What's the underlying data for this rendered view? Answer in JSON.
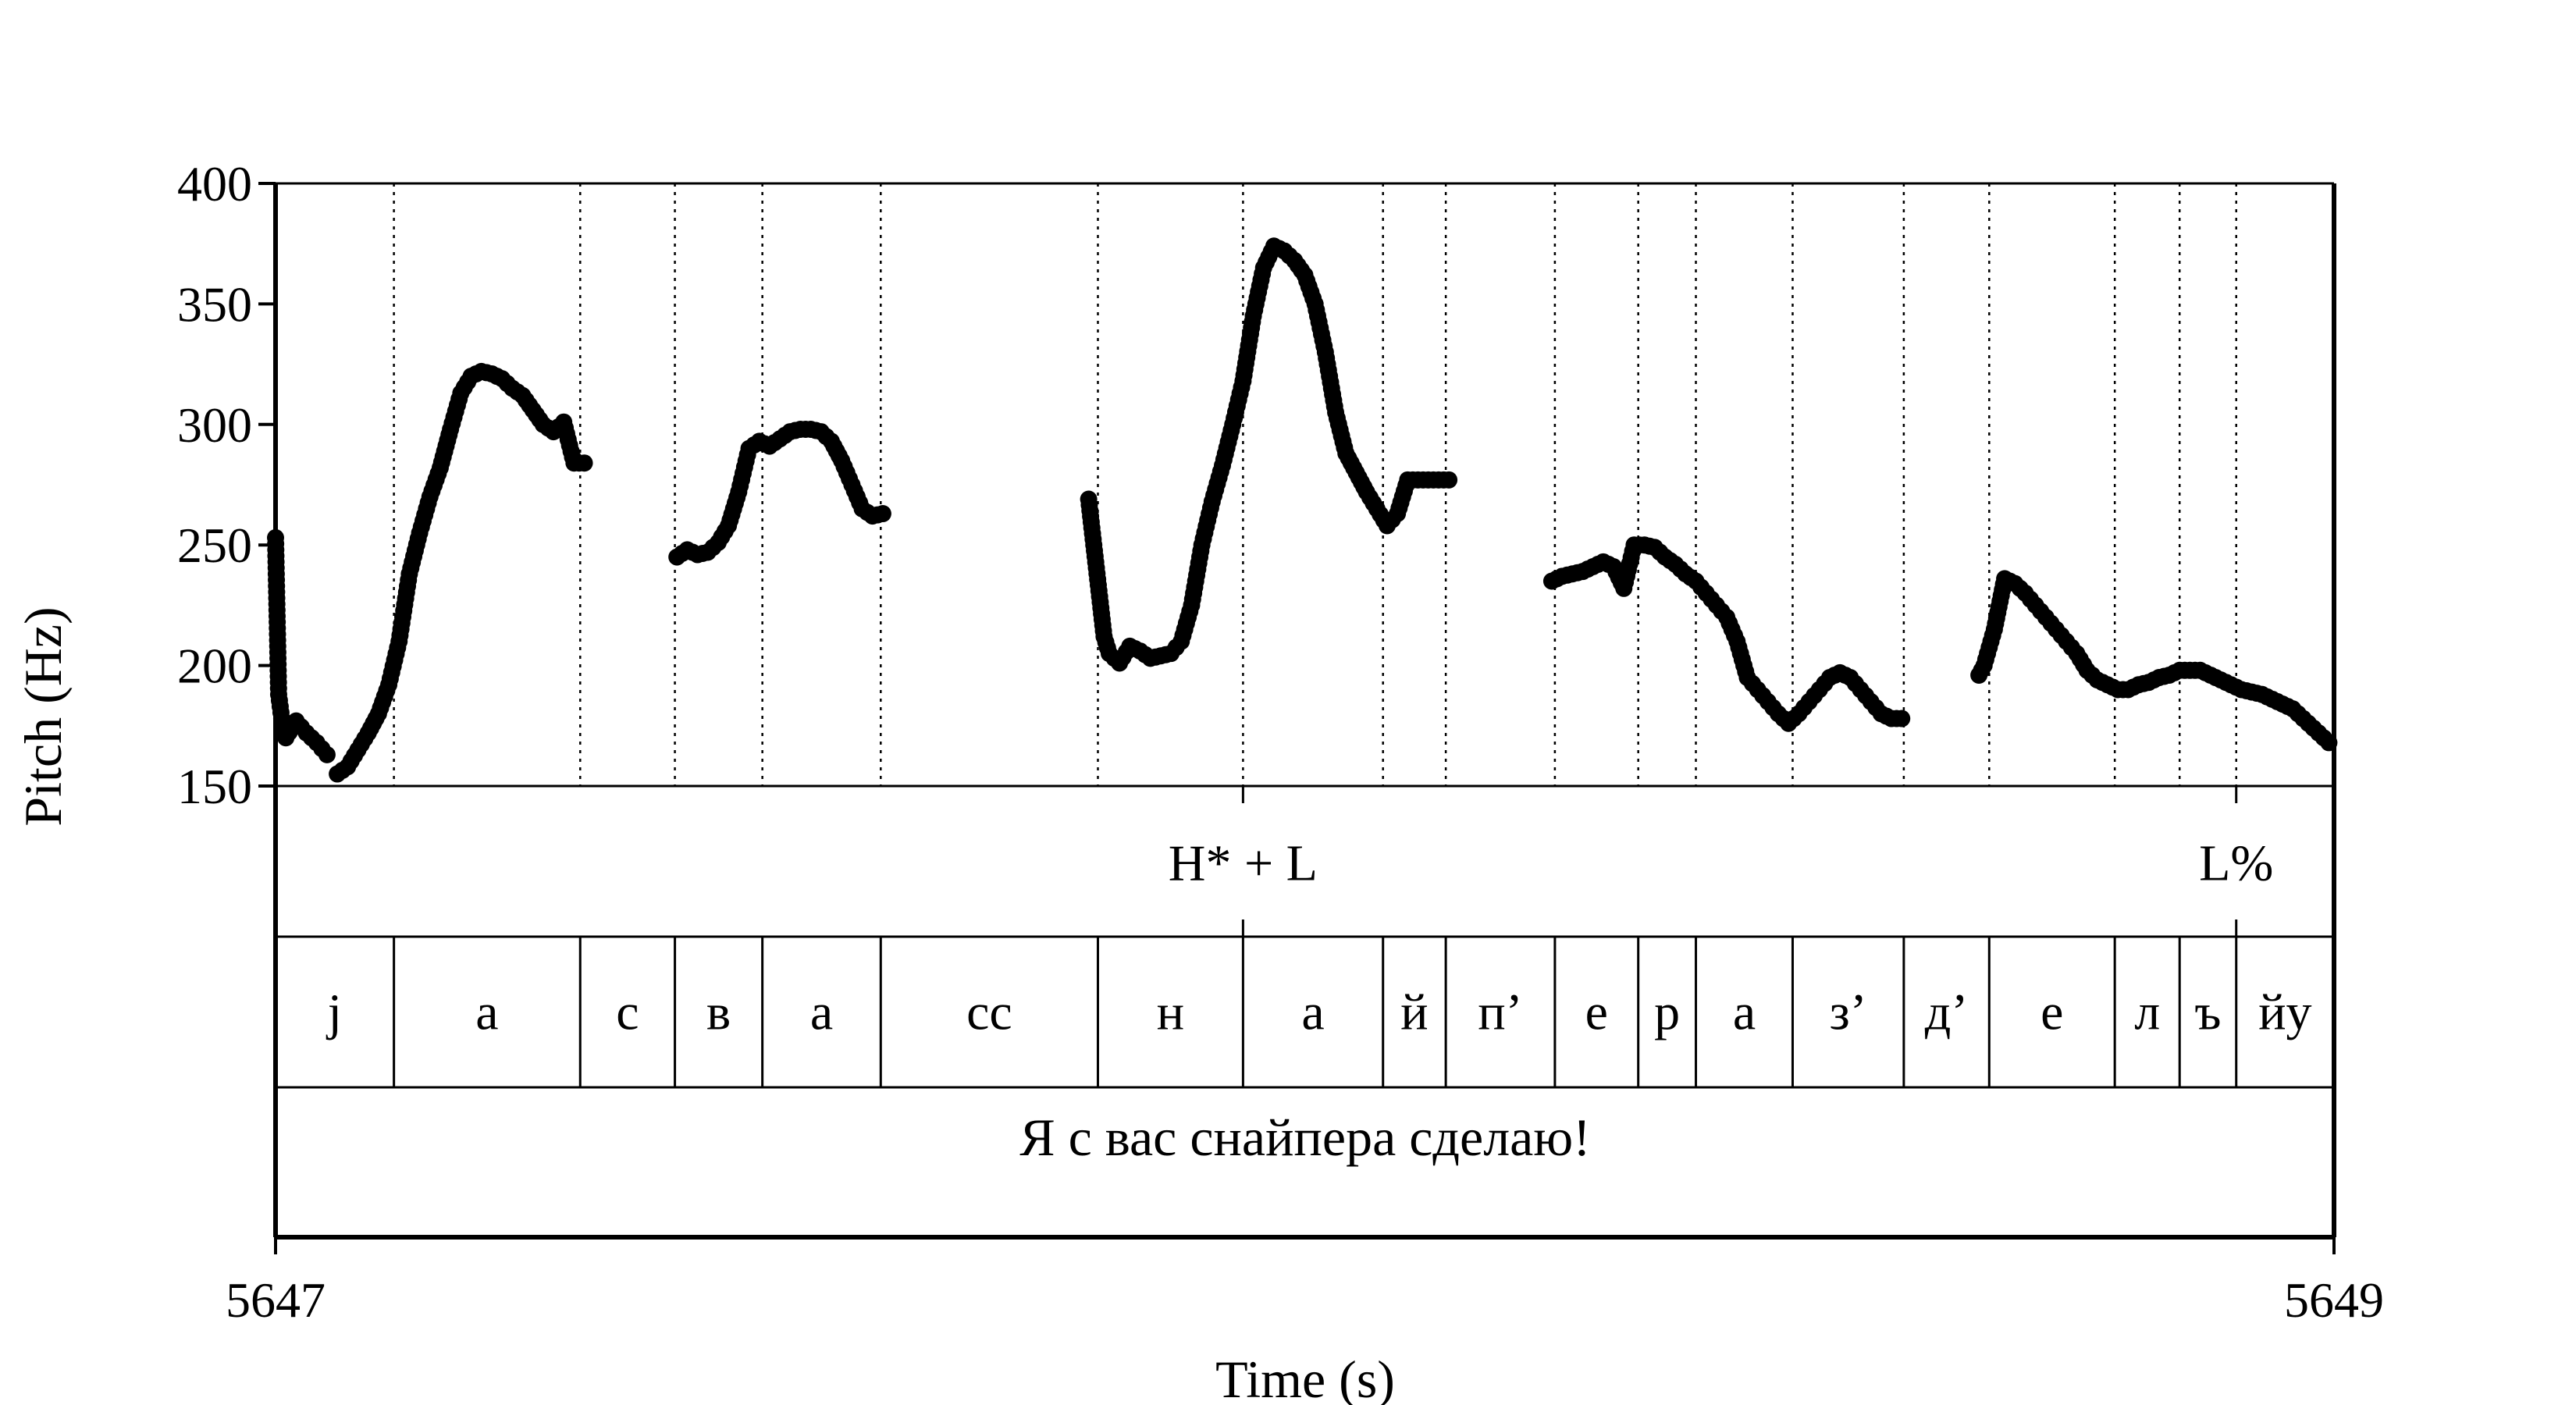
{
  "chart_data": {
    "type": "scatter",
    "xlabel": "Time (s)",
    "ylabel": "Pitch (Hz)",
    "xlim": [
      5647,
      5649
    ],
    "ylim": [
      150,
      400
    ],
    "x_tick_labels": [
      "5647",
      "5649"
    ],
    "y_ticks": [
      150,
      200,
      250,
      300,
      350,
      400
    ],
    "y_tick_labels": [
      "150",
      "200",
      "250",
      "300",
      "350",
      "400"
    ],
    "grid": false,
    "tones": [
      {
        "label": "H* + L",
        "t": 5647.94
      },
      {
        "label": "L%",
        "t": 5648.905
      }
    ],
    "segments": [
      {
        "label": "j",
        "start": 5647.0,
        "end": 5647.115
      },
      {
        "label": "а",
        "start": 5647.115,
        "end": 5647.296
      },
      {
        "label": "с",
        "start": 5647.296,
        "end": 5647.388
      },
      {
        "label": "в",
        "start": 5647.388,
        "end": 5647.473
      },
      {
        "label": "а",
        "start": 5647.473,
        "end": 5647.588
      },
      {
        "label": "сс",
        "start": 5647.588,
        "end": 5647.799
      },
      {
        "label": "н",
        "start": 5647.799,
        "end": 5647.94
      },
      {
        "label": "а",
        "start": 5647.94,
        "end": 5648.076
      },
      {
        "label": "й",
        "start": 5648.076,
        "end": 5648.137
      },
      {
        "label": "п’",
        "start": 5648.137,
        "end": 5648.243
      },
      {
        "label": "е",
        "start": 5648.243,
        "end": 5648.324
      },
      {
        "label": "р",
        "start": 5648.324,
        "end": 5648.38
      },
      {
        "label": "а",
        "start": 5648.38,
        "end": 5648.474
      },
      {
        "label": "з’",
        "start": 5648.474,
        "end": 5648.582
      },
      {
        "label": "д’",
        "start": 5648.582,
        "end": 5648.665
      },
      {
        "label": "е",
        "start": 5648.665,
        "end": 5648.787
      },
      {
        "label": "л",
        "start": 5648.787,
        "end": 5648.85
      },
      {
        "label": "ъ",
        "start": 5648.85,
        "end": 5648.905
      },
      {
        "label": "йу",
        "start": 5648.905,
        "end": 5649.0
      }
    ],
    "sentence": "Я с вас снайпера сделаю!",
    "pitch_series": [
      {
        "x": [
          5647.0,
          5647.003,
          5647.006,
          5647.01,
          5647.02,
          5647.03,
          5647.04,
          5647.05
        ],
        "y": [
          253,
          188,
          178,
          170,
          177,
          172,
          168,
          163
        ]
      },
      {
        "x": [
          5647.06,
          5647.07,
          5647.08,
          5647.09,
          5647.1,
          5647.11,
          5647.12,
          5647.13,
          5647.14,
          5647.15,
          5647.16,
          5647.17,
          5647.18,
          5647.19,
          5647.2,
          5647.21,
          5647.22,
          5647.23,
          5647.24,
          5647.25,
          5647.26,
          5647.27,
          5647.28,
          5647.29,
          5647.3
        ],
        "y": [
          155,
          158,
          165,
          172,
          180,
          192,
          210,
          238,
          255,
          270,
          282,
          298,
          313,
          320,
          322,
          321,
          319,
          315,
          312,
          306,
          300,
          297,
          301,
          284,
          284
        ]
      },
      {
        "x": [
          5647.39,
          5647.4,
          5647.41,
          5647.42,
          5647.43,
          5647.44,
          5647.45,
          5647.46,
          5647.47,
          5647.48,
          5647.49,
          5647.5,
          5647.51,
          5647.52,
          5647.53,
          5647.54,
          5647.55,
          5647.56,
          5647.57,
          5647.58,
          5647.59
        ],
        "y": [
          245,
          248,
          246,
          247,
          251,
          258,
          272,
          290,
          293,
          291,
          294,
          297,
          298,
          298,
          297,
          293,
          285,
          275,
          265,
          262,
          263
        ]
      },
      {
        "x": [
          5647.79,
          5647.795,
          5647.8,
          5647.805,
          5647.81,
          5647.82,
          5647.83,
          5647.84,
          5647.85,
          5647.86,
          5647.87,
          5647.88,
          5647.89,
          5647.9,
          5647.91,
          5647.92,
          5647.93,
          5647.94,
          5647.95,
          5647.96,
          5647.97,
          5647.98,
          5647.99,
          5648.0,
          5648.01,
          5648.02,
          5648.03,
          5648.04,
          5648.05,
          5648.06,
          5648.07,
          5648.08,
          5648.09,
          5648.1,
          5648.11,
          5648.12,
          5648.13,
          5648.14
        ],
        "y": [
          269,
          250,
          231,
          212,
          205,
          201,
          208,
          206,
          203,
          204,
          205,
          210,
          225,
          250,
          268,
          283,
          300,
          318,
          345,
          365,
          374,
          372,
          368,
          362,
          350,
          330,
          305,
          288,
          280,
          272,
          265,
          258,
          263,
          277,
          277,
          277,
          277,
          277
        ]
      }
    ],
    "pitch_series_2": [
      {
        "x": [
          5648.24,
          5648.25,
          5648.26,
          5648.27,
          5648.28,
          5648.29,
          5648.3,
          5648.31,
          5648.32,
          5648.33,
          5648.34,
          5648.35,
          5648.36,
          5648.37,
          5648.38,
          5648.39,
          5648.4,
          5648.41,
          5648.42,
          5648.43,
          5648.44,
          5648.45,
          5648.46,
          5648.47,
          5648.48,
          5648.49,
          5648.5,
          5648.51,
          5648.52,
          5648.53,
          5648.54,
          5648.55,
          5648.56,
          5648.57,
          5648.58
        ],
        "y": [
          235,
          237,
          238,
          239,
          241,
          243,
          241,
          232,
          250,
          250,
          249,
          245,
          242,
          238,
          235,
          230,
          225,
          220,
          210,
          195,
          190,
          185,
          180,
          176,
          180,
          185,
          190,
          195,
          197,
          195,
          190,
          185,
          180,
          178,
          178
        ]
      },
      {
        "x": [
          5648.655,
          5648.66,
          5648.67,
          5648.68,
          5648.69,
          5648.7,
          5648.71,
          5648.72,
          5648.73,
          5648.74,
          5648.75,
          5648.76,
          5648.77,
          5648.78,
          5648.79,
          5648.8,
          5648.81,
          5648.82,
          5648.83,
          5648.84,
          5648.85,
          5648.86,
          5648.87,
          5648.88,
          5648.89,
          5648.9,
          5648.91,
          5648.92,
          5648.93,
          5648.94,
          5648.95,
          5648.96,
          5648.97,
          5648.98,
          5648.99,
          5648.995
        ],
        "y": [
          196,
          200,
          215,
          236,
          234,
          230,
          225,
          220,
          215,
          210,
          205,
          198,
          194,
          192,
          190,
          190,
          192,
          193,
          195,
          196,
          198,
          198,
          198,
          196,
          194,
          192,
          190,
          189,
          188,
          186,
          184,
          182,
          178,
          174,
          170,
          168
        ]
      }
    ]
  }
}
